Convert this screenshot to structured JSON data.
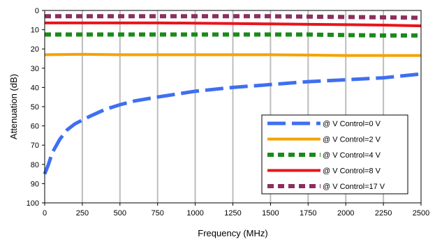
{
  "chart_data": {
    "type": "line",
    "xlabel": "Frequency (MHz)",
    "ylabel": "Attenuation (dB)",
    "xlim": [
      0,
      2500
    ],
    "ylim": [
      0,
      100
    ],
    "y_inverted": true,
    "x_ticks": [
      "0",
      "250",
      "500",
      "750",
      "1000",
      "1250",
      "1500",
      "1750",
      "2000",
      "2250",
      "2500"
    ],
    "y_ticks": [
      "0",
      "10",
      "20",
      "30",
      "40",
      "50",
      "60",
      "70",
      "80",
      "90",
      "100"
    ],
    "grid": "vertical",
    "legend_position": "bottom-right",
    "series": [
      {
        "name": "@ V Control=0 V",
        "color": "#3f6ff0",
        "dash": "long-dash",
        "x": [
          0,
          25,
          50,
          100,
          150,
          200,
          250,
          300,
          400,
          500,
          600,
          750,
          1000,
          1250,
          1500,
          1750,
          2000,
          2250,
          2500
        ],
        "y": [
          85,
          80,
          74,
          67,
          62,
          59,
          57,
          55,
          51.5,
          49,
          47,
          45,
          42,
          40,
          38.5,
          37,
          36,
          35,
          33
        ]
      },
      {
        "name": "@ V Control=2 V",
        "color": "#f5a200",
        "dash": "solid",
        "x": [
          0,
          250,
          500,
          750,
          1000,
          1250,
          1500,
          1750,
          2000,
          2250,
          2500
        ],
        "y": [
          23,
          22.8,
          23,
          23,
          23,
          23,
          23,
          23.2,
          23.4,
          23.4,
          23.4
        ]
      },
      {
        "name": "@ V Control=4 V",
        "color": "#1a8a1a",
        "dash": "square-dot",
        "x": [
          0,
          250,
          500,
          750,
          1000,
          1250,
          1500,
          1750,
          2000,
          2250,
          2500
        ],
        "y": [
          12.5,
          12.5,
          12.5,
          12.5,
          12.5,
          12.5,
          12.5,
          12.5,
          12.8,
          13,
          13
        ]
      },
      {
        "name": "@ V Control=8 V",
        "color": "#e8141b",
        "dash": "solid",
        "x": [
          0,
          250,
          500,
          750,
          1000,
          1250,
          1500,
          1750,
          2000,
          2250,
          2500
        ],
        "y": [
          6.5,
          6.5,
          6.5,
          6.5,
          6.6,
          6.8,
          7.0,
          7.2,
          7.4,
          7.6,
          8.0
        ]
      },
      {
        "name": "@ V Control=17 V",
        "color": "#8b2f60",
        "dash": "square-dot",
        "x": [
          0,
          250,
          500,
          750,
          1000,
          1250,
          1500,
          1750,
          2000,
          2250,
          2500
        ],
        "y": [
          3.0,
          3.0,
          3.0,
          3.0,
          3.0,
          3.0,
          3.0,
          3.2,
          3.4,
          3.6,
          3.8
        ]
      }
    ]
  }
}
